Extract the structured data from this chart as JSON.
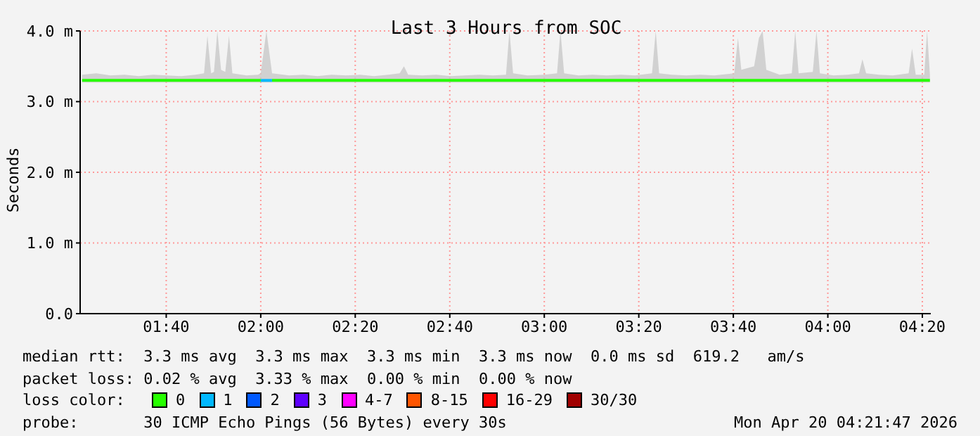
{
  "chart_data": {
    "type": "line",
    "title": "Last 3 Hours from SOC",
    "ylabel": "Seconds",
    "xlim": [
      1.3631,
      4.3631
    ],
    "xticks": [
      {
        "value": 1.6667,
        "label": "01:40"
      },
      {
        "value": 2,
        "label": "02:00"
      },
      {
        "value": 2.3333,
        "label": "02:20"
      },
      {
        "value": 2.6667,
        "label": "02:40"
      },
      {
        "value": 3,
        "label": "03:00"
      },
      {
        "value": 3.3333,
        "label": "03:20"
      },
      {
        "value": 3.6667,
        "label": "03:40"
      },
      {
        "value": 4,
        "label": "04:00"
      },
      {
        "value": 4.3333,
        "label": "04:20"
      }
    ],
    "ylim": [
      0,
      4
    ],
    "yticks": [
      {
        "value": 0,
        "label": "0.0"
      },
      {
        "value": 1,
        "label": "1.0 m"
      },
      {
        "value": 2,
        "label": "2.0 m"
      },
      {
        "value": 3,
        "label": "3.0 m"
      },
      {
        "value": 4,
        "label": "4.0 m"
      }
    ],
    "grid": true,
    "legend": "bottom",
    "legend_title": "loss color:",
    "marker": "none",
    "line_style": "solid",
    "series": [
      {
        "name": "0",
        "color": "#26ff00",
        "x": [
          1.37,
          1.42,
          1.47,
          1.52,
          1.57,
          1.62,
          1.67,
          1.72,
          1.77,
          1.8,
          1.812,
          1.825,
          1.835,
          1.847,
          1.86,
          1.875,
          1.888,
          1.9,
          1.95,
          1.99,
          2.0,
          2.02,
          2.04,
          2.1,
          2.15,
          2.2,
          2.25,
          2.3,
          2.35,
          2.4,
          2.45,
          2.49,
          2.505,
          2.52,
          2.57,
          2.62,
          2.67,
          2.72,
          2.77,
          2.82,
          2.865,
          2.877,
          2.89,
          2.94,
          3.0,
          3.045,
          3.057,
          3.07,
          3.12,
          3.17,
          3.22,
          3.27,
          3.32,
          3.38,
          3.393,
          3.405,
          3.45,
          3.5,
          3.55,
          3.6,
          3.67,
          3.683,
          3.695,
          3.74,
          3.757,
          3.77,
          3.783,
          3.83,
          3.873,
          3.885,
          3.897,
          3.947,
          3.96,
          3.972,
          4.02,
          4.07,
          4.11,
          4.122,
          4.135,
          4.18,
          4.23,
          4.285,
          4.297,
          4.31,
          4.34,
          4.35,
          4.36
        ],
        "values": [
          3.3,
          3.3,
          3.3,
          3.3,
          3.3,
          3.3,
          3.3,
          3.3,
          3.3,
          3.3,
          3.3,
          3.3,
          3.3,
          3.3,
          3.3,
          3.3,
          3.3,
          3.3,
          3.3,
          3.3,
          3.3,
          null,
          3.3,
          3.3,
          3.3,
          3.3,
          3.3,
          3.3,
          3.3,
          3.3,
          3.3,
          3.3,
          3.3,
          3.3,
          3.3,
          3.3,
          3.3,
          3.3,
          3.3,
          3.3,
          3.3,
          3.3,
          3.3,
          3.3,
          3.3,
          3.3,
          3.3,
          3.3,
          3.3,
          3.3,
          3.3,
          3.3,
          3.3,
          3.3,
          3.3,
          3.3,
          3.3,
          3.3,
          3.3,
          3.3,
          3.3,
          3.3,
          3.3,
          3.3,
          3.3,
          3.3,
          3.3,
          3.3,
          3.3,
          3.3,
          3.3,
          3.3,
          3.3,
          3.3,
          3.3,
          3.3,
          3.3,
          3.3,
          3.3,
          3.3,
          3.3,
          3.3,
          3.3,
          3.3,
          3.3,
          3.3,
          3.3
        ],
        "lower": [
          3.27,
          3.27,
          3.27,
          3.27,
          3.27,
          3.27,
          3.27,
          3.27,
          3.27,
          3.27,
          3.27,
          3.27,
          3.27,
          3.27,
          3.27,
          3.27,
          3.27,
          3.27,
          3.27,
          3.27,
          3.27,
          3.27,
          3.27,
          3.27,
          3.27,
          3.27,
          3.27,
          3.27,
          3.27,
          3.27,
          3.27,
          3.27,
          3.27,
          3.27,
          3.27,
          3.27,
          3.27,
          3.27,
          3.27,
          3.27,
          3.27,
          3.27,
          3.27,
          3.27,
          3.27,
          3.27,
          3.27,
          3.27,
          3.27,
          3.27,
          3.27,
          3.27,
          3.27,
          3.27,
          3.27,
          3.27,
          3.27,
          3.27,
          3.27,
          3.27,
          3.27,
          3.27,
          3.27,
          3.27,
          3.27,
          3.27,
          3.27,
          3.27,
          3.27,
          3.27,
          3.27,
          3.27,
          3.27,
          3.27,
          3.27,
          3.27,
          3.27,
          3.27,
          3.27,
          3.27,
          3.27,
          3.27,
          3.27,
          3.27,
          3.27,
          3.27,
          3.27
        ],
        "upper": [
          3.38,
          3.4,
          3.37,
          3.38,
          3.36,
          3.38,
          3.37,
          3.36,
          3.38,
          3.4,
          3.93,
          3.4,
          3.42,
          4.0,
          3.45,
          3.42,
          3.93,
          3.4,
          3.37,
          3.38,
          3.4,
          4.0,
          3.4,
          3.37,
          3.38,
          3.36,
          3.38,
          3.37,
          3.38,
          3.36,
          3.38,
          3.4,
          3.5,
          3.38,
          3.37,
          3.38,
          3.36,
          3.37,
          3.38,
          3.37,
          3.38,
          4.0,
          3.4,
          3.37,
          3.38,
          3.4,
          4.0,
          3.4,
          3.37,
          3.38,
          3.37,
          3.38,
          3.37,
          3.4,
          4.0,
          3.4,
          3.38,
          3.37,
          3.38,
          3.37,
          3.4,
          3.9,
          3.45,
          3.5,
          3.9,
          4.0,
          3.45,
          3.38,
          3.4,
          4.0,
          3.4,
          3.42,
          4.0,
          3.4,
          3.37,
          3.38,
          3.4,
          3.6,
          3.4,
          3.38,
          3.37,
          3.4,
          3.75,
          3.38,
          3.38,
          4.0,
          3.38
        ]
      },
      {
        "name": "1",
        "color": "#00b8ff",
        "x": [
          2.0,
          2.02,
          2.04
        ],
        "values": [
          3.3,
          3.3,
          3.3
        ]
      },
      {
        "name": "2",
        "color": "#0059ff"
      },
      {
        "name": "3",
        "color": "#5e00ff"
      },
      {
        "name": "4-7",
        "color": "#ff00ff"
      },
      {
        "name": "8-15",
        "color": "#ff5500"
      },
      {
        "name": "16-29",
        "color": "#ff0000"
      },
      {
        "name": "30/30",
        "color": "#a10000"
      }
    ],
    "annotations": [
      "median rtt:  3.3 ms avg  3.3 ms max  3.3 ms min  3.3 ms now  0.0 ms sd  619.2   am/s",
      "packet loss: 0.02 % avg  3.33 % max  0.00 % min  0.00 % now",
      "probe:       30 ICMP Echo Pings (56 Bytes) every 30s",
      "Mon Apr 20 04:21:47 2026"
    ]
  }
}
